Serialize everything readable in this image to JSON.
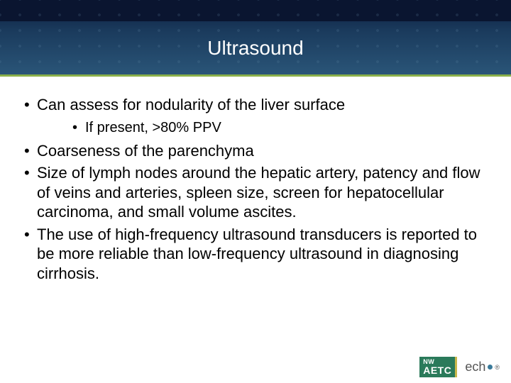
{
  "header": {
    "title": "Ultrasound",
    "background_gradient": [
      "#0a1a3a",
      "#1a3a5c",
      "#2a5578"
    ],
    "top_bar_color": "#0a1530",
    "underline_color": "#8ab04a",
    "title_color": "#ffffff",
    "title_fontsize": 28
  },
  "content": {
    "text_color": "#000000",
    "fontsize": 22,
    "sub_fontsize": 20,
    "bullets": [
      {
        "text": "Can assess for nodularity of the liver surface",
        "children": [
          {
            "text": "If present, >80% PPV"
          }
        ]
      },
      {
        "text": "Coarseness of the parenchyma"
      },
      {
        "text": "Size of lymph nodes around the hepatic artery, patency and flow of veins and arteries,  spleen size, screen for hepatocellular carcinoma, and small volume ascites."
      },
      {
        "text": "The use of high-frequency ultrasound transducers is reported to be more reliable than low-frequency ultrasound in diagnosing cirrhosis."
      }
    ]
  },
  "footer": {
    "aetc": {
      "nw": "NW",
      "main": "AETC",
      "bg_color": "#2a7a5a",
      "stripe_color": "#c8b74a",
      "text_color": "#ffffff"
    },
    "echo": {
      "text": "ech",
      "reg": "®",
      "text_color": "#555555",
      "dot_color": "#3a7a9a"
    }
  }
}
